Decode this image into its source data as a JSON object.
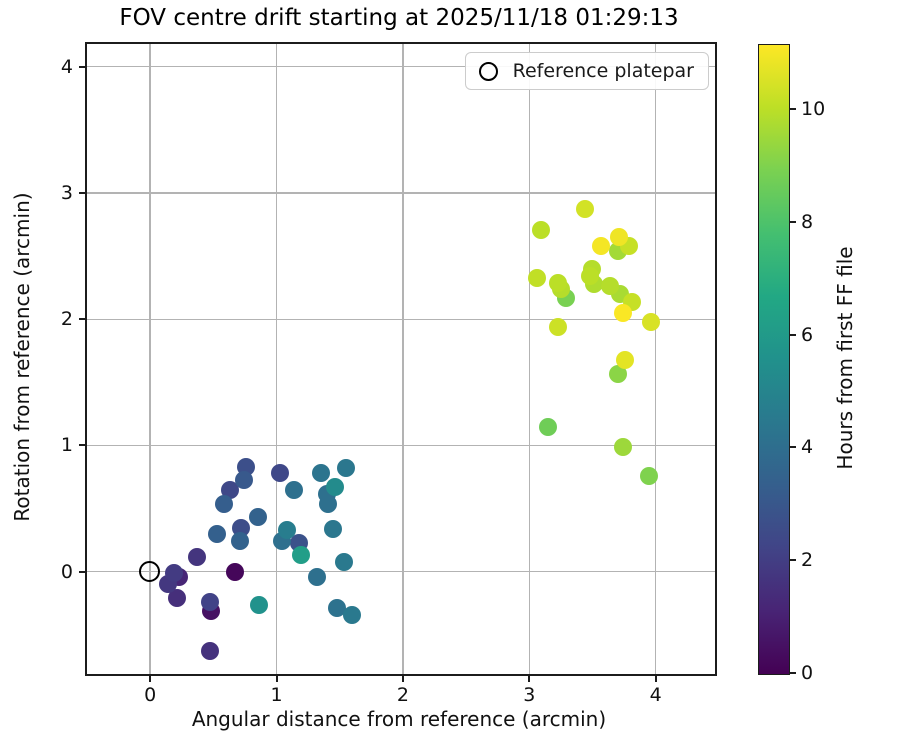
{
  "chart_data": {
    "type": "scatter",
    "title": "FOV centre drift starting at 2025/11/18 01:29:13",
    "xlabel": "Angular distance from reference (arcmin)",
    "ylabel": "Rotation from reference (arcmin)",
    "legend_label": "Reference platepar",
    "xlim": [
      -0.5,
      4.47
    ],
    "ylim": [
      -0.81,
      4.18
    ],
    "xticks": [
      0,
      1,
      2,
      3,
      4
    ],
    "yticks": [
      0,
      1,
      2,
      3,
      4
    ],
    "grid": true,
    "legend_position": "upper right",
    "reference_point": {
      "x": 0,
      "y": 0
    },
    "colorbar": {
      "label": "Hours from first FF file",
      "min": 0,
      "max": 11.15,
      "ticks": [
        0,
        2,
        4,
        6,
        8,
        10
      ],
      "colormap": "viridis"
    },
    "points_format": [
      "x_arcmin",
      "y_arcmin",
      "hours_from_first_ff"
    ],
    "points": [
      [
        0.67,
        0.0,
        0.2
      ],
      [
        0.48,
        -0.31,
        0.5
      ],
      [
        0.23,
        -0.04,
        1.2
      ],
      [
        0.21,
        -0.21,
        1.5
      ],
      [
        0.47,
        -0.63,
        1.6
      ],
      [
        0.37,
        0.12,
        1.7
      ],
      [
        0.14,
        -0.1,
        1.8
      ],
      [
        0.19,
        -0.01,
        1.9
      ],
      [
        0.47,
        -0.24,
        2.2
      ],
      [
        0.63,
        0.645,
        2.4
      ],
      [
        1.03,
        0.78,
        2.4
      ],
      [
        0.72,
        0.35,
        2.6
      ],
      [
        0.76,
        0.83,
        2.7
      ],
      [
        1.18,
        0.23,
        2.8
      ],
      [
        0.74,
        0.73,
        3.1
      ],
      [
        0.585,
        0.54,
        3.3
      ],
      [
        0.53,
        0.3,
        3.4
      ],
      [
        0.71,
        0.24,
        3.5
      ],
      [
        0.85,
        0.43,
        3.5
      ],
      [
        1.14,
        0.65,
        4.1
      ],
      [
        1.04,
        0.24,
        4.1
      ],
      [
        1.4,
        0.615,
        4.1
      ],
      [
        1.41,
        0.54,
        4.1
      ],
      [
        1.32,
        -0.04,
        4.1
      ],
      [
        1.48,
        -0.29,
        4.2
      ],
      [
        1.35,
        0.78,
        4.3
      ],
      [
        1.55,
        0.82,
        4.4
      ],
      [
        1.45,
        0.34,
        4.4
      ],
      [
        1.53,
        0.08,
        4.5
      ],
      [
        1.6,
        -0.34,
        4.5
      ],
      [
        1.08,
        0.33,
        4.7
      ],
      [
        1.46,
        0.67,
        5.3
      ],
      [
        0.86,
        -0.26,
        5.6
      ],
      [
        1.19,
        0.13,
        6.2
      ],
      [
        3.15,
        1.15,
        8.7
      ],
      [
        3.29,
        2.17,
        8.9
      ],
      [
        3.95,
        0.76,
        9.0
      ],
      [
        3.7,
        1.57,
        9.2
      ],
      [
        3.74,
        0.985,
        9.5
      ],
      [
        3.7,
        2.54,
        9.6
      ],
      [
        3.72,
        2.2,
        9.7
      ],
      [
        3.51,
        2.28,
        9.8
      ],
      [
        3.25,
        2.24,
        9.9
      ],
      [
        3.5,
        2.4,
        9.9
      ],
      [
        3.64,
        2.26,
        9.9
      ],
      [
        3.23,
        2.29,
        10.0
      ],
      [
        3.48,
        2.34,
        10.0
      ],
      [
        3.09,
        2.71,
        10.0
      ],
      [
        3.06,
        2.33,
        10.1
      ],
      [
        3.79,
        2.58,
        10.2
      ],
      [
        3.81,
        2.14,
        10.2
      ],
      [
        3.23,
        1.94,
        10.3
      ],
      [
        3.44,
        2.87,
        10.4
      ],
      [
        3.96,
        1.98,
        10.5
      ],
      [
        3.76,
        1.68,
        10.7
      ],
      [
        3.71,
        2.65,
        10.9
      ],
      [
        3.57,
        2.58,
        11.0
      ],
      [
        3.745,
        2.05,
        11.1
      ]
    ]
  },
  "colors": {
    "grid": "#b3b3b3",
    "spine": "#1c1c1c",
    "reference_marker": "#000000",
    "viridis_stops": [
      "#440154",
      "#482475",
      "#414487",
      "#355f8d",
      "#2a788e",
      "#21918c",
      "#22a884",
      "#44bf70",
      "#7ad151",
      "#bddf26",
      "#fde725"
    ]
  }
}
